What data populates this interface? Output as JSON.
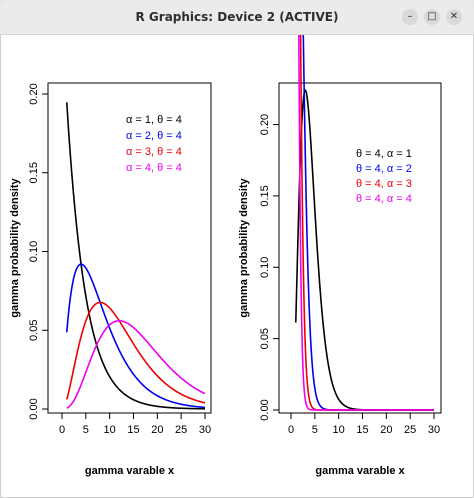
{
  "window": {
    "title": "R Graphics: Device 2 (ACTIVE)",
    "minimize_glyph": "–",
    "maximize_glyph": "□",
    "close_glyph": "✕"
  },
  "chart_data": [
    {
      "type": "line",
      "title": "",
      "xlabel": "gamma varable x",
      "ylabel": "gamma probability density",
      "xlim": [
        0,
        30
      ],
      "ylim": [
        0,
        0.2
      ],
      "xticks": [
        0,
        5,
        10,
        15,
        20,
        25,
        30
      ],
      "yticks": [
        0.0,
        0.05,
        0.1,
        0.15,
        0.2
      ],
      "ytick_labels": [
        "0.00",
        "0.05",
        "0.10",
        "0.15",
        "0.20"
      ],
      "grid": false,
      "legend_position": "top-right",
      "parameterization": "shape-scale",
      "series": [
        {
          "name": "α = 1,    θ = 4",
          "shape": 1,
          "scale": 4,
          "color": "#000000"
        },
        {
          "name": "α = 2,    θ = 4",
          "shape": 2,
          "scale": 4,
          "color": "#0000ee"
        },
        {
          "name": "α = 3,    θ = 4",
          "shape": 3,
          "scale": 4,
          "color": "#ee0000"
        },
        {
          "name": "α = 4,    θ = 4",
          "shape": 4,
          "scale": 4,
          "color": "#ee00ee"
        }
      ]
    },
    {
      "type": "line",
      "title": "",
      "xlabel": "gamma varable x",
      "ylabel": "gamma probability density",
      "xlim": [
        0,
        30
      ],
      "ylim": [
        0,
        0.22
      ],
      "xticks": [
        0,
        5,
        10,
        15,
        20,
        25,
        30
      ],
      "yticks": [
        0.0,
        0.05,
        0.1,
        0.15,
        0.2
      ],
      "ytick_labels": [
        "0.00",
        "0.05",
        "0.10",
        "0.15",
        "0.20"
      ],
      "grid": false,
      "legend_position": "top-right",
      "parameterization": "shape-rate",
      "series": [
        {
          "name": "θ = 4,    α = 1",
          "shape": 4,
          "rate": 1,
          "color": "#000000"
        },
        {
          "name": "θ = 4,    α = 2",
          "shape": 4,
          "rate": 2,
          "color": "#0000ee"
        },
        {
          "name": "θ = 4,    α = 3",
          "shape": 4,
          "rate": 3,
          "color": "#ee0000"
        },
        {
          "name": "θ = 4,    α = 4",
          "shape": 4,
          "rate": 4,
          "color": "#ee00ee"
        }
      ]
    }
  ]
}
